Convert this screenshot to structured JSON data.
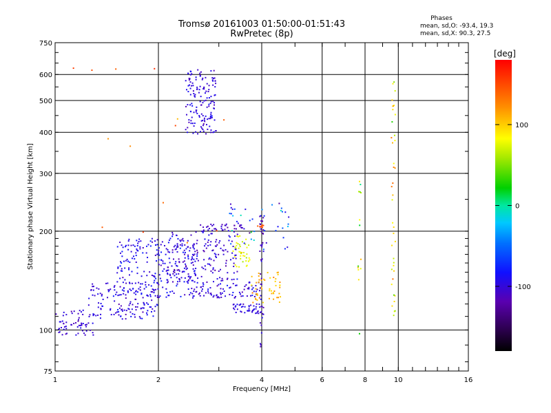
{
  "title_line1": "Tromsø 20161003 01:50:00-01:51:43",
  "title_line2": "RwPretec (8p)",
  "phases": {
    "heading": "Phases",
    "o_line": "mean, sd,O: -93.4, 19.3",
    "x_line": "mean, sd,X:  90.3, 27.5"
  },
  "chart_data": {
    "type": "scatter",
    "xlabel": "Frequency [MHz]",
    "ylabel": "Stationary phase Virtual Height [km]",
    "x_scale": "log2",
    "y_scale": "log",
    "xlim": [
      1,
      16
    ],
    "ylim": [
      75,
      750
    ],
    "x_ticks": [
      {
        "value": 1,
        "label": "1"
      },
      {
        "value": 2,
        "label": "2"
      },
      {
        "value": 4,
        "label": "4"
      },
      {
        "value": 6,
        "label": "6"
      },
      {
        "value": 8,
        "label": "8"
      },
      {
        "value": 10,
        "label": "10"
      },
      {
        "value": 16,
        "label": "16"
      }
    ],
    "y_ticks": [
      {
        "value": 75,
        "label": "75"
      },
      {
        "value": 100,
        "label": "100"
      },
      {
        "value": 200,
        "label": "200"
      },
      {
        "value": 300,
        "label": "300"
      },
      {
        "value": 400,
        "label": "400"
      },
      {
        "value": 500,
        "label": "500"
      },
      {
        "value": 600,
        "label": "600"
      },
      {
        "value": 750,
        "label": "750"
      }
    ],
    "grid": true,
    "colorbar": {
      "label": "[deg]",
      "range": [
        -180,
        180
      ],
      "ticks": [
        {
          "value": 100,
          "label": "100"
        },
        {
          "value": 0,
          "label": "0"
        },
        {
          "value": -100,
          "label": "-100"
        }
      ],
      "colormap": "rainbow"
    },
    "clusters": [
      {
        "f_range": [
          1.0,
          1.3
        ],
        "h_range": [
          96,
          115
        ],
        "n": 60,
        "phase_mean": -105,
        "phase_sd": 12
      },
      {
        "f_range": [
          1.25,
          2.0
        ],
        "h_range": [
          108,
          140
        ],
        "n": 140,
        "phase_mean": -100,
        "phase_sd": 12
      },
      {
        "f_range": [
          1.5,
          2.6
        ],
        "h_range": [
          125,
          190
        ],
        "n": 230,
        "phase_mean": -95,
        "phase_sd": 14
      },
      {
        "f_range": [
          2.1,
          3.4
        ],
        "h_range": [
          140,
          200
        ],
        "n": 180,
        "phase_mean": -105,
        "phase_sd": 15
      },
      {
        "f_range": [
          2.4,
          2.95
        ],
        "h_range": [
          395,
          620
        ],
        "n": 150,
        "phase_mean": -100,
        "phase_sd": 10
      },
      {
        "f_range": [
          3.3,
          4.0
        ],
        "h_range": [
          112,
          120
        ],
        "n": 45,
        "phase_mean": -100,
        "phase_sd": 10
      },
      {
        "f_range": [
          2.5,
          4.0
        ],
        "h_range": [
          125,
          140
        ],
        "n": 90,
        "phase_mean": -100,
        "phase_sd": 14
      },
      {
        "f_range": [
          3.3,
          3.7
        ],
        "h_range": [
          155,
          195
        ],
        "n": 40,
        "phase_mean": 75,
        "phase_sd": 15
      },
      {
        "f_range": [
          3.7,
          4.6
        ],
        "h_range": [
          120,
          150
        ],
        "n": 50,
        "phase_mean": 110,
        "phase_sd": 15
      },
      {
        "f_range": [
          2.6,
          3.6
        ],
        "h_range": [
          200,
          210
        ],
        "n": 35,
        "phase_mean": -110,
        "phase_sd": 10
      },
      {
        "f_range": [
          3.2,
          4.8
        ],
        "h_range": [
          175,
          245
        ],
        "n": 45,
        "phase_mean": -60,
        "phase_sd": 50
      },
      {
        "f_range": [
          3.95,
          4.05
        ],
        "h_range": [
          88,
          225
        ],
        "n": 40,
        "phase_mean": -110,
        "phase_sd": 12
      },
      {
        "f_range": [
          3.88,
          4.05
        ],
        "h_range": [
          205,
          209
        ],
        "n": 8,
        "phase_mean": 150,
        "phase_sd": 5
      },
      {
        "f_range": [
          9.55,
          9.8
        ],
        "h_range": [
          110,
          620
        ],
        "n": 40,
        "phase_mean": 95,
        "phase_sd": 40
      },
      {
        "f_range": [
          7.6,
          7.8
        ],
        "h_range": [
          80,
          295
        ],
        "n": 14,
        "phase_mean": 60,
        "phase_sd": 80
      },
      {
        "f_range": [
          1.1,
          3.6
        ],
        "h_range": [
          180,
          700
        ],
        "n": 14,
        "phase_mean": 140,
        "phase_sd": 20
      }
    ]
  }
}
